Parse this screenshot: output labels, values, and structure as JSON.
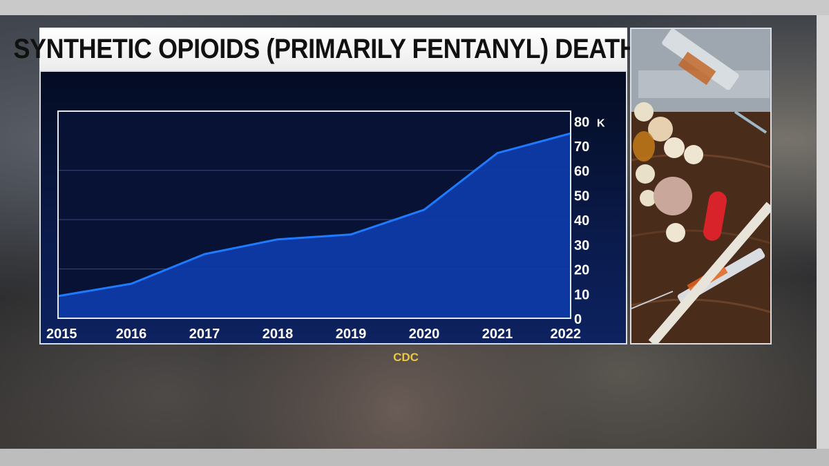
{
  "title": "SYNTHETIC OPIOIDS (PRIMARILY FENTANYL) DEATHS",
  "source": "CDC",
  "y_unit": "K",
  "colors": {
    "line": "#1e7bff",
    "area": "#0e3aa8",
    "source_text": "#e8c84a"
  },
  "chart_data": {
    "type": "area",
    "title": "SYNTHETIC OPIOIDS (PRIMARILY FENTANYL) DEATHS",
    "x": [
      "2015",
      "2016",
      "2017",
      "2018",
      "2019",
      "2020",
      "2021",
      "2022"
    ],
    "values": [
      9,
      14,
      26,
      32,
      34,
      44,
      67,
      75
    ],
    "ylim": [
      0,
      84
    ],
    "y_ticks": [
      "0",
      "10",
      "20",
      "30",
      "40",
      "50",
      "60",
      "70",
      "80"
    ],
    "y_unit": "K",
    "grid": true,
    "xlabel": "",
    "ylabel": ""
  },
  "photo": {
    "icon": "drugs-photo"
  }
}
